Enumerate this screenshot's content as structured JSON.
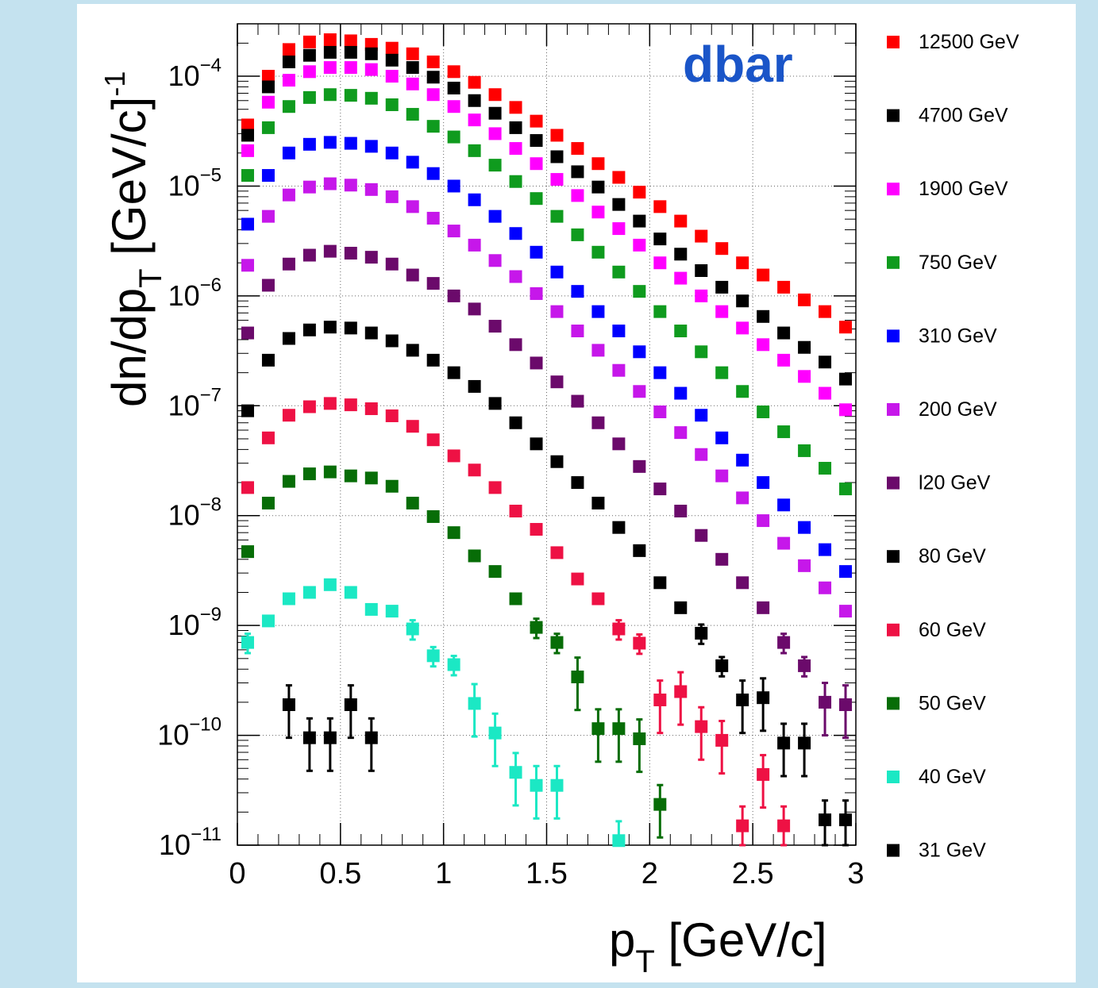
{
  "chart_data": {
    "type": "scatter",
    "title": "dbar",
    "title_color": "#1a55c8",
    "xlabel_main": "p",
    "xlabel_sub": "T",
    "xlabel_tail": " [GeV/c]",
    "ylabel_main": "dn/dp",
    "ylabel_sub": "T",
    "ylabel_tail": " [GeV/c]",
    "ylabel_sup": "-1",
    "xlim": [
      0,
      3
    ],
    "ylim": [
      1e-11,
      0.0003
    ],
    "yscale": "log",
    "grid": true,
    "legend_position": "right",
    "x_ticks": [
      {
        "v": 0,
        "label": "0"
      },
      {
        "v": 0.5,
        "label": "0.5"
      },
      {
        "v": 1,
        "label": "1"
      },
      {
        "v": 1.5,
        "label": "1.5"
      },
      {
        "v": 2,
        "label": "2"
      },
      {
        "v": 2.5,
        "label": "2.5"
      },
      {
        "v": 3,
        "label": "3"
      }
    ],
    "y_ticks": [
      {
        "v": 0.0001,
        "base": "10",
        "exp": "−4"
      },
      {
        "v": 1e-05,
        "base": "10",
        "exp": "−5"
      },
      {
        "v": 1e-06,
        "base": "10",
        "exp": "−6"
      },
      {
        "v": 1e-07,
        "base": "10",
        "exp": "−7"
      },
      {
        "v": 1e-08,
        "base": "10",
        "exp": "−8"
      },
      {
        "v": 1e-09,
        "base": "10",
        "exp": "−9"
      },
      {
        "v": 1e-10,
        "base": "10",
        "exp": "−10"
      },
      {
        "v": 1e-11,
        "base": "10",
        "exp": "−11"
      }
    ],
    "x": [
      0.05,
      0.15,
      0.25,
      0.35,
      0.45,
      0.55,
      0.65,
      0.75,
      0.85,
      0.95,
      1.05,
      1.15,
      1.25,
      1.35,
      1.45,
      1.55,
      1.65,
      1.75,
      1.85,
      1.95,
      2.05,
      2.15,
      2.25,
      2.35,
      2.45,
      2.55,
      2.65,
      2.75,
      2.85,
      2.95
    ],
    "series": [
      {
        "name": "12500 GeV",
        "color": "#ff0000",
        "values": [
          3.6e-05,
          0.0001,
          0.000175,
          0.000205,
          0.000215,
          0.00021,
          0.000195,
          0.00018,
          0.00016,
          0.000135,
          0.00011,
          8.8e-05,
          6.8e-05,
          5.2e-05,
          3.9e-05,
          2.9e-05,
          2.2e-05,
          1.6e-05,
          1.2e-05,
          8.8e-06,
          6.5e-06,
          4.8e-06,
          3.5e-06,
          2.7e-06,
          2e-06,
          1.55e-06,
          1.2e-06,
          9.2e-07,
          7.2e-07,
          5.2e-07
        ]
      },
      {
        "name": "4700 GeV",
        "color": "#000000",
        "values": [
          2.9e-05,
          8e-05,
          0.000135,
          0.000155,
          0.000165,
          0.000165,
          0.00016,
          0.00014,
          0.00012,
          9.8e-05,
          7.8e-05,
          6e-05,
          4.6e-05,
          3.4e-05,
          2.6e-05,
          1.85e-05,
          1.35e-05,
          9.8e-06,
          6.8e-06,
          4.8e-06,
          3.3e-06,
          2.4e-06,
          1.7e-06,
          1.2e-06,
          9e-07,
          6.5e-07,
          4.6e-07,
          3.4e-07,
          2.5e-07,
          1.75e-07
        ]
      },
      {
        "name": "1900 GeV",
        "color": "#ff00ff",
        "values": [
          2.1e-05,
          5.8e-05,
          9.2e-05,
          0.00011,
          0.00012,
          0.00012,
          0.000115,
          0.0001,
          8.5e-05,
          6.8e-05,
          5.3e-05,
          4e-05,
          3e-05,
          2.2e-05,
          1.6e-05,
          1.15e-05,
          8.2e-06,
          5.8e-06,
          4.1e-06,
          2.9e-06,
          2e-06,
          1.45e-06,
          1e-06,
          7.2e-07,
          5.1e-07,
          3.6e-07,
          2.6e-07,
          1.85e-07,
          1.3e-07,
          9.2e-08
        ]
      },
      {
        "name": "750 GeV",
        "color": "#0f9b1e",
        "values": [
          1.25e-05,
          3.4e-05,
          5.3e-05,
          6.4e-05,
          6.8e-05,
          6.7e-05,
          6.3e-05,
          5.5e-05,
          4.5e-05,
          3.5e-05,
          2.8e-05,
          2.1e-05,
          1.55e-05,
          1.1e-05,
          7.7e-06,
          5.3e-06,
          3.6e-06,
          2.5e-06,
          1.65e-06,
          1.1e-06,
          7.2e-07,
          4.8e-07,
          3.1e-07,
          2e-07,
          1.35e-07,
          8.8e-08,
          5.8e-08,
          3.9e-08,
          2.7e-08,
          1.75e-08
        ]
      },
      {
        "name": "310 GeV",
        "color": "#0000ff",
        "values": [
          4.5e-06,
          1.25e-05,
          2e-05,
          2.4e-05,
          2.5e-05,
          2.45e-05,
          2.3e-05,
          2e-05,
          1.65e-05,
          1.3e-05,
          1e-05,
          7.5e-06,
          5.3e-06,
          3.7e-06,
          2.5e-06,
          1.65e-06,
          1.1e-06,
          7.2e-07,
          4.8e-07,
          3.1e-07,
          2e-07,
          1.3e-07,
          8.2e-08,
          5.1e-08,
          3.2e-08,
          2e-08,
          1.25e-08,
          7.8e-09,
          4.9e-09,
          3.1e-09
        ]
      },
      {
        "name": "200 GeV",
        "color": "#c617ea",
        "values": [
          1.9e-06,
          5.3e-06,
          8.3e-06,
          9.8e-06,
          1.05e-05,
          1.02e-05,
          9.3e-06,
          8e-06,
          6.5e-06,
          5.1e-06,
          3.9e-06,
          2.9e-06,
          2.1e-06,
          1.5e-06,
          1.05e-06,
          7.2e-07,
          4.8e-07,
          3.2e-07,
          2.1e-07,
          1.35e-07,
          8.8e-08,
          5.7e-08,
          3.6e-08,
          2.3e-08,
          1.45e-08,
          9e-09,
          5.6e-09,
          3.5e-09,
          2.2e-09,
          1.35e-09
        ]
      },
      {
        "name": "l20 GeV",
        "color": "#6b0a6b",
        "values": [
          4.6e-07,
          1.25e-06,
          1.95e-06,
          2.35e-06,
          2.55e-06,
          2.45e-06,
          2.25e-06,
          1.95e-06,
          1.55e-06,
          1.3e-06,
          1e-06,
          7.6e-07,
          5.3e-07,
          3.6e-07,
          2.45e-07,
          1.65e-07,
          1.1e-07,
          7e-08,
          4.5e-08,
          2.8e-08,
          1.75e-08,
          1.1e-08,
          6.6e-09,
          4e-09,
          2.45e-09,
          1.45e-09,
          7e-10,
          4.3e-10,
          2e-10,
          1.9e-10
        ]
      },
      {
        "name": "80 GeV",
        "color": "#000000",
        "values": [
          9e-08,
          2.6e-07,
          4.1e-07,
          4.9e-07,
          5.2e-07,
          5.1e-07,
          4.6e-07,
          3.9e-07,
          3.2e-07,
          2.6e-07,
          2e-07,
          1.5e-07,
          1.05e-07,
          7e-08,
          4.5e-08,
          3.1e-08,
          2e-08,
          1.3e-08,
          7.8e-09,
          4.8e-09,
          2.45e-09,
          1.45e-09,
          8.5e-10,
          4.3e-10,
          2.1e-10,
          2.2e-10,
          8.5e-11,
          8.5e-11,
          1.7e-11,
          1.7e-11
        ]
      },
      {
        "name": "60 GeV",
        "color": "#ee1144",
        "values": [
          1.8e-08,
          5.1e-08,
          8.2e-08,
          9.8e-08,
          1.05e-07,
          1.02e-07,
          9.4e-08,
          8.1e-08,
          6.5e-08,
          4.9e-08,
          3.5e-08,
          2.6e-08,
          1.8e-08,
          1.1e-08,
          7.5e-09,
          4.6e-09,
          2.65e-09,
          1.75e-09,
          9.3e-10,
          6.9e-10,
          2.1e-10,
          2.5e-10,
          1.2e-10,
          9e-11,
          1.5e-11,
          4.4e-11,
          1.5e-11
        ]
      },
      {
        "name": "50 GeV",
        "color": "#076d07",
        "values": [
          4.7e-09,
          1.3e-08,
          2.05e-08,
          2.4e-08,
          2.5e-08,
          2.3e-08,
          2.2e-08,
          1.85e-08,
          1.3e-08,
          9.8e-09,
          7e-09,
          4.3e-09,
          3.1e-09,
          1.75e-09,
          9.6e-10,
          7e-10,
          3.4e-10,
          1.15e-10,
          1.15e-10,
          9.3e-11,
          2.35e-11
        ]
      },
      {
        "name": "40 GeV",
        "color": "#1be8c4",
        "values": [
          7e-10,
          1.1e-09,
          1.75e-09,
          2e-09,
          2.35e-09,
          2e-09,
          1.4e-09,
          1.35e-09,
          9.3e-10,
          5.3e-10,
          4.4e-10,
          1.95e-10,
          1.05e-10,
          4.6e-11,
          3.5e-11,
          3.5e-11,
          null,
          null,
          1.1e-11
        ]
      },
      {
        "name": "31 GeV",
        "color": "#000000",
        "values": [
          null,
          null,
          1.9e-10,
          9.5e-11,
          9.5e-11,
          1.9e-10,
          9.5e-11
        ]
      }
    ]
  }
}
